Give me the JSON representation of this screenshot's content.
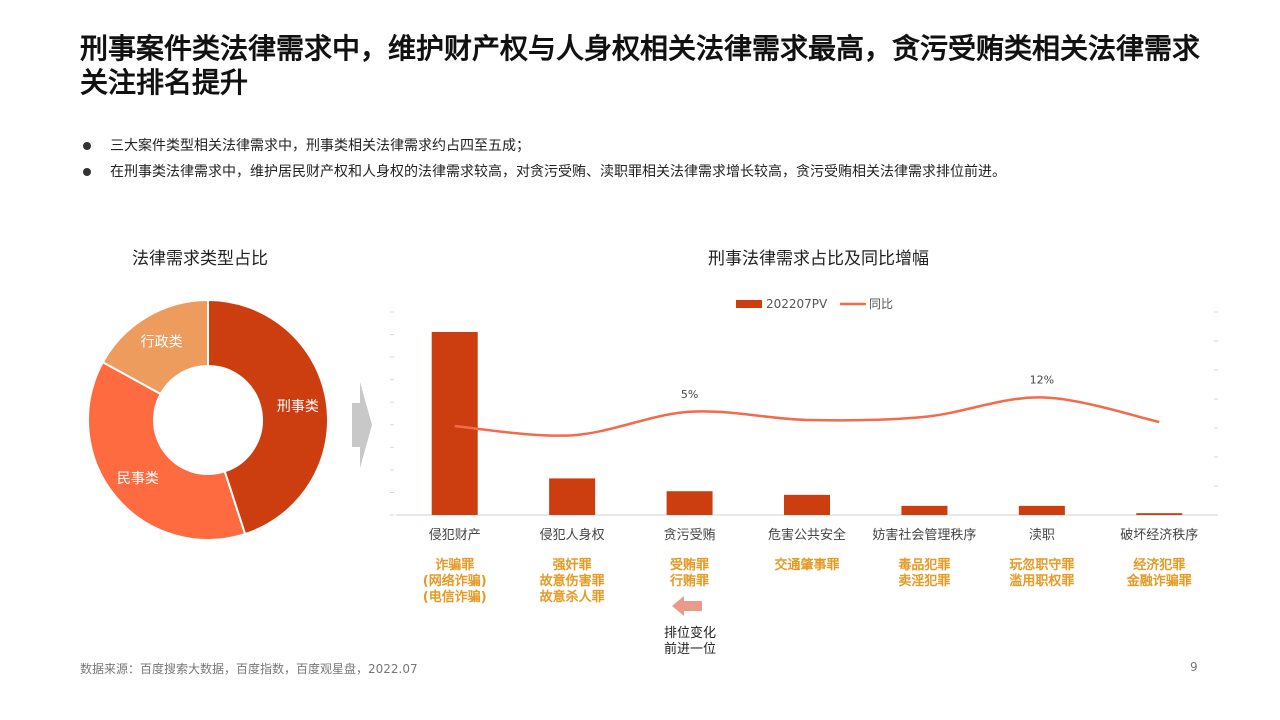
{
  "title": "刑事案件类法律需求中，维护财产权与人身权相关法律需求最高，贪污受贿类相关法律需求关注排名提升",
  "bullets": [
    "三大案件类型相关法律需求中，刑事类相关法律需求约占四至五成；",
    "在刑事类法律需求中，维护居民财产权和人身权的法律需求较高，对贪污受贿、渎职罪相关法律需求增长较高，贪污受贿相关法律需求排位前进。"
  ],
  "chart_data": [
    {
      "type": "pie",
      "title": "法律需求类型占比",
      "donut": true,
      "slices": [
        {
          "label": "刑事类",
          "value": 45,
          "color": "#cc3d10"
        },
        {
          "label": "民事类",
          "value": 38,
          "color": "#ff6b40"
        },
        {
          "label": "行政类",
          "value": 17,
          "color": "#ed9c5e"
        }
      ]
    },
    {
      "type": "bar",
      "title": "刑事法律需求占比及同比增幅",
      "legend_position": "top",
      "categories": [
        "侵犯财产",
        "侵犯人身权",
        "贪污受贿",
        "危害公共安全",
        "妨害社会管理秩序",
        "渎职",
        "破坏经济秩序"
      ],
      "series": [
        {
          "name": "202207PV",
          "kind": "bar",
          "color": "#cc3d10",
          "values": [
            100,
            20,
            13,
            11,
            5,
            5,
            1
          ]
        },
        {
          "name": "同比",
          "kind": "line",
          "color": "#f26b4a",
          "values": [
            -2,
            -6.5,
            5,
            1,
            2.5,
            12,
            0
          ],
          "labels": [
            "",
            "",
            "5%",
            "",
            "",
            "12%",
            ""
          ]
        }
      ]
    }
  ],
  "crime_groups": [
    [
      "诈骗罪",
      "(网络诈骗)",
      "(电信诈骗)"
    ],
    [
      "强奸罪",
      "故意伤害罪",
      "故意杀人罪"
    ],
    [
      "受贿罪",
      "行贿罪"
    ],
    [
      "交通肇事罪"
    ],
    [
      "毒品犯罪",
      "卖淫犯罪"
    ],
    [
      "玩忽职守罪",
      "滥用职权罪"
    ],
    [
      "经济犯罪",
      "金融诈骗罪"
    ]
  ],
  "rank_note": [
    "排位变化",
    "前进一位"
  ],
  "colors": {
    "arrow_gray": "#c8c8c8",
    "rank_arrow": "#eb9a8a",
    "crime_text": "#e69a26"
  },
  "source": "数据来源：百度搜索大数据，百度指数，百度观星盘，2022.07",
  "page_number": "9"
}
